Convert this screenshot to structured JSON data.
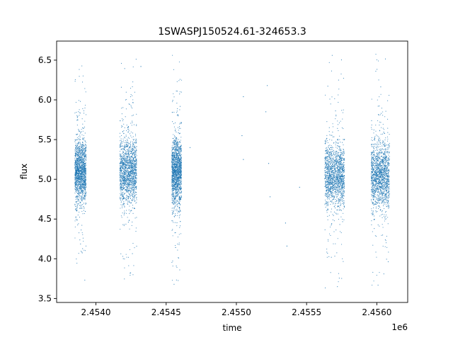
{
  "chart_data": {
    "type": "scatter",
    "title": "1SWASPJ150524.61-324653.3",
    "xlabel": "time",
    "ylabel": "flux",
    "x_offset_label": "1e6",
    "xlim": [
      2.45372,
      2.45622
    ],
    "ylim": [
      3.45,
      6.74
    ],
    "x_ticks": [
      2.454,
      2.4545,
      2.455,
      2.4555,
      2.456
    ],
    "x_tick_labels": [
      "2.4540",
      "2.4545",
      "2.4550",
      "2.4555",
      "2.4560"
    ],
    "y_ticks": [
      3.5,
      4.0,
      4.5,
      5.0,
      5.5,
      6.0,
      6.5
    ],
    "y_tick_labels": [
      "3.5",
      "4.0",
      "4.5",
      "5.0",
      "5.5",
      "6.0",
      "6.5"
    ],
    "grid": false,
    "legend": null,
    "point_color": "#1f77b4",
    "series": [
      {
        "observing_seasons": [
          {
            "x_start": 2.45385,
            "x_end": 2.45393,
            "y_center": 5.1,
            "y_min": 3.7,
            "y_max": 6.5
          },
          {
            "x_start": 2.45417,
            "x_end": 2.45429,
            "y_center": 5.1,
            "y_min": 3.62,
            "y_max": 6.55
          },
          {
            "x_start": 2.45454,
            "x_end": 2.45461,
            "y_center": 5.1,
            "y_min": 3.65,
            "y_max": 6.6
          },
          {
            "x_start": 2.45563,
            "x_end": 2.45577,
            "y_center": 5.05,
            "y_min": 3.62,
            "y_max": 6.6
          },
          {
            "x_start": 2.45596,
            "x_end": 2.45609,
            "y_center": 5.05,
            "y_min": 3.6,
            "y_max": 6.6
          }
        ],
        "sparse_points": [
          {
            "x": 2.45467,
            "y": 5.4
          },
          {
            "x": 2.45505,
            "y": 6.04
          },
          {
            "x": 2.45504,
            "y": 5.55
          },
          {
            "x": 2.45505,
            "y": 5.25
          },
          {
            "x": 2.45521,
            "y": 5.85
          },
          {
            "x": 2.45522,
            "y": 6.18
          },
          {
            "x": 2.45523,
            "y": 5.2
          },
          {
            "x": 2.45524,
            "y": 4.78
          },
          {
            "x": 2.45535,
            "y": 4.45
          },
          {
            "x": 2.45536,
            "y": 4.16
          },
          {
            "x": 2.45432,
            "y": 6.42
          },
          {
            "x": 2.45545,
            "y": 4.9
          }
        ]
      }
    ]
  }
}
